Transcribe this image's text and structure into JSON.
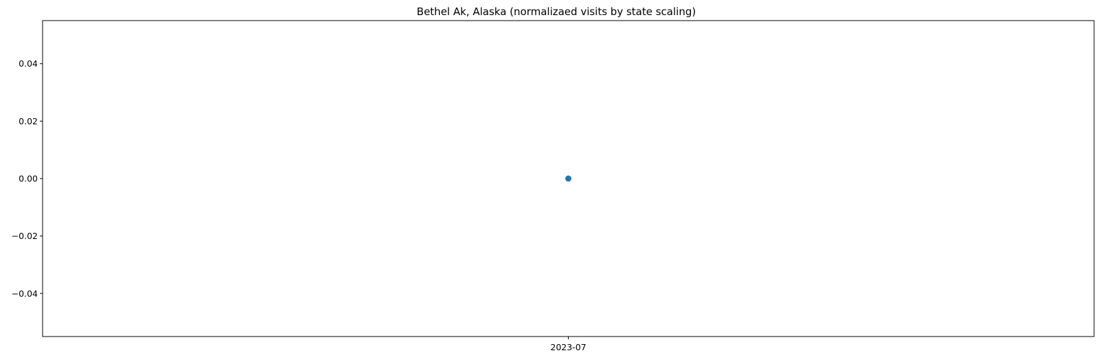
{
  "chart_data": {
    "type": "scatter",
    "title": "Bethel Ak, Alaska (normalizaed visits by state scaling)",
    "xlabel": "",
    "ylabel": "",
    "x": [
      "2023-07"
    ],
    "y": [
      0.0
    ],
    "x_ticks": [
      "2023-07"
    ],
    "y_ticks": [
      -0.04,
      -0.02,
      0.0,
      0.02,
      0.04
    ],
    "y_tick_labels": [
      "−0.04",
      "−0.02",
      "0.00",
      "0.02",
      "0.04"
    ],
    "ylim": [
      -0.055,
      0.055
    ],
    "grid": false,
    "legend": "none",
    "colors": {
      "marker": "#1f77b4",
      "axis": "#000000",
      "background": "#ffffff"
    }
  }
}
